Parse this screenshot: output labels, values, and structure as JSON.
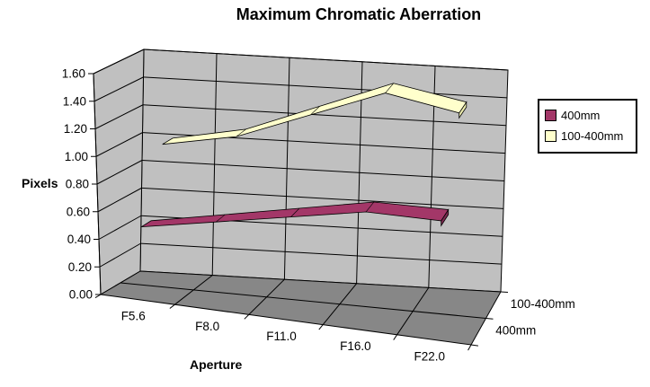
{
  "chart": {
    "title": "Maximum Chromatic Aberration",
    "y_axis_title": "Pixels",
    "x_axis_title": "Aperture"
  },
  "chart_data": {
    "type": "line",
    "projection": "3d-ribbon",
    "title": "Maximum Chromatic Aberration",
    "xlabel": "Aperture",
    "ylabel": "Pixels",
    "categories": [
      "F5.6",
      "F8.0",
      "F11.0",
      "F16.0",
      "F22.0"
    ],
    "series": [
      {
        "name": "400mm",
        "values": [
          0.5,
          0.6,
          0.7,
          0.8,
          0.8
        ],
        "color": "#A33768",
        "cap_color": "#7D2950"
      },
      {
        "name": "100-400mm",
        "values": [
          1.0,
          1.1,
          1.3,
          1.5,
          1.4
        ],
        "color": "#FFFFCC",
        "cap_color": "#ECECAE"
      }
    ],
    "depth_axis": {
      "labels_back_to_front": [
        "100-400mm",
        "400mm"
      ]
    },
    "y_ticks": [
      "0.00",
      "0.20",
      "0.40",
      "0.60",
      "0.80",
      "1.00",
      "1.20",
      "1.40",
      "1.60"
    ],
    "ylim": [
      0,
      1.6
    ],
    "y_tick_step": 0.2,
    "grid": true,
    "legend_position": "right",
    "legend_entries": [
      "400mm",
      "100-400mm"
    ],
    "colors": {
      "wall": "#C0C0C0",
      "floor": "#878787",
      "gridline": "#000000",
      "background": "#FFFFFF",
      "text": "#000000"
    }
  }
}
